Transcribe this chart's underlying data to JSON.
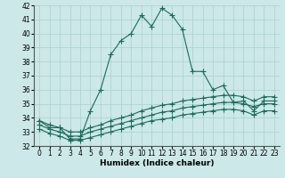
{
  "xlabel": "Humidex (Indice chaleur)",
  "x": [
    0,
    1,
    2,
    3,
    4,
    5,
    6,
    7,
    8,
    9,
    10,
    11,
    12,
    13,
    14,
    15,
    16,
    17,
    18,
    19,
    20,
    21,
    22,
    23
  ],
  "line1": [
    33.8,
    33.3,
    33.3,
    32.5,
    32.5,
    34.5,
    36.0,
    38.5,
    39.5,
    40.0,
    41.3,
    40.5,
    41.8,
    41.3,
    40.3,
    37.3,
    37.3,
    36.0,
    36.3,
    35.1,
    35.2,
    34.5,
    35.2,
    35.2
  ],
  "line2": [
    33.8,
    33.5,
    33.3,
    33.0,
    33.0,
    33.3,
    33.5,
    33.8,
    34.0,
    34.2,
    34.5,
    34.7,
    34.9,
    35.0,
    35.2,
    35.3,
    35.4,
    35.5,
    35.6,
    35.6,
    35.5,
    35.2,
    35.5,
    35.5
  ],
  "line3": [
    33.5,
    33.2,
    33.0,
    32.7,
    32.7,
    33.0,
    33.2,
    33.4,
    33.6,
    33.8,
    34.0,
    34.2,
    34.4,
    34.5,
    34.7,
    34.8,
    34.9,
    35.0,
    35.1,
    35.1,
    35.0,
    34.8,
    35.0,
    35.0
  ],
  "line4": [
    33.2,
    32.9,
    32.7,
    32.4,
    32.4,
    32.6,
    32.8,
    33.0,
    33.2,
    33.4,
    33.6,
    33.8,
    33.9,
    34.0,
    34.2,
    34.3,
    34.4,
    34.5,
    34.6,
    34.6,
    34.5,
    34.2,
    34.5,
    34.5
  ],
  "ylim": [
    32,
    42
  ],
  "yticks": [
    32,
    33,
    34,
    35,
    36,
    37,
    38,
    39,
    40,
    41,
    42
  ],
  "bg_color": "#cce8e8",
  "grid_color": "#aacfcf",
  "line_color": "#1a6b5a",
  "markersize": 4,
  "linewidth": 0.8,
  "label_fontsize": 6.5,
  "tick_fontsize": 5.5
}
